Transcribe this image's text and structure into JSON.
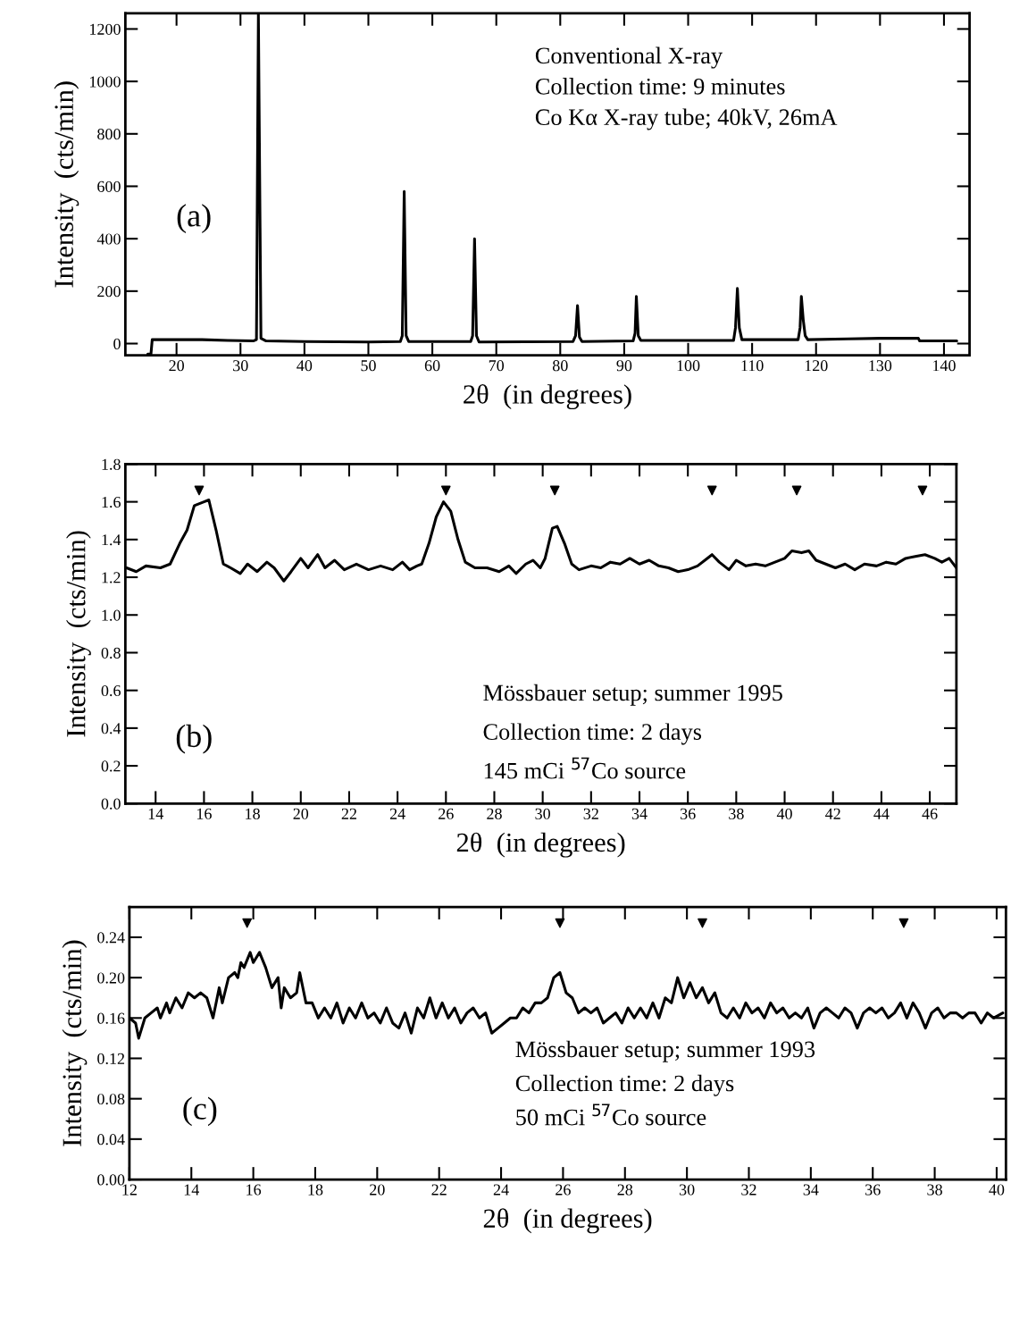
{
  "chart_data": [
    {
      "type": "line",
      "xlabel": "2θ  (in degrees)",
      "ylabel": "Intensity  (cts/min)",
      "xlim": [
        12,
        144
      ],
      "ylim": [
        -45,
        1260
      ],
      "xticks": [
        20,
        30,
        40,
        50,
        60,
        70,
        80,
        90,
        100,
        110,
        120,
        130,
        140
      ],
      "yticks": [
        0,
        200,
        400,
        600,
        800,
        1000,
        1200
      ],
      "grid": false,
      "legend": false,
      "annotations": [
        "(a)",
        "Conventional X-ray",
        "Collection time: 9 minutes",
        "Co Kα X-ray tube; 40kV, 26mA"
      ],
      "series": [
        {
          "color": "#000000",
          "line_style": "solid",
          "x": [
            15.5,
            16.0,
            16.2,
            18,
            24,
            28,
            32,
            32.5,
            32.8,
            33.2,
            34,
            40,
            50,
            55,
            55.3,
            55.6,
            55.9,
            56.3,
            66,
            66.3,
            66.6,
            66.9,
            67.3,
            82,
            82.4,
            82.7,
            83.0,
            83.4,
            91.4,
            91.7,
            91.9,
            92.2,
            92.6,
            107.1,
            107.4,
            107.7,
            108.0,
            108.4,
            117.2,
            117.5,
            117.7,
            118.0,
            118.3,
            118.7,
            125,
            130,
            136,
            136.2,
            142
          ],
          "values": [
            -40,
            -40,
            15,
            15,
            15,
            12,
            10,
            15,
            1260,
            20,
            10,
            8,
            6,
            8,
            30,
            580,
            30,
            8,
            8,
            30,
            400,
            30,
            6,
            8,
            30,
            145,
            25,
            8,
            10,
            40,
            180,
            30,
            12,
            12,
            60,
            210,
            60,
            15,
            15,
            60,
            180,
            90,
            30,
            15,
            18,
            20,
            20,
            10,
            10
          ]
        }
      ]
    },
    {
      "type": "line",
      "xlabel": "2θ  (in degrees)",
      "ylabel": "Intensity  (cts/min)",
      "xlim": [
        12.75,
        47.1
      ],
      "ylim": [
        0,
        1.8
      ],
      "xticks": [
        14,
        16,
        18,
        20,
        22,
        24,
        26,
        28,
        30,
        32,
        34,
        36,
        38,
        40,
        42,
        44,
        46
      ],
      "yticks": [
        {
          "value": 0,
          "label": "0.0"
        },
        0.2,
        0.4,
        0.6,
        0.8,
        {
          "value": 1,
          "label": "1.0"
        },
        1.2,
        1.4,
        1.6,
        1.8
      ],
      "grid": false,
      "legend": false,
      "annotations": [
        "(b)",
        "Mössbauer setup; summer 1995",
        "Collection time: 2 days",
        "145 mCi $^{57}$Co source"
      ],
      "series": [
        {
          "color": "#000000",
          "line_style": "solid",
          "x": [
            12.8,
            13.2,
            13.6,
            14.2,
            14.6,
            15.0,
            15.3,
            15.6,
            16.0,
            16.2,
            16.5,
            16.8,
            17.1,
            17.5,
            17.8,
            18.2,
            18.6,
            18.9,
            19.3,
            19.6,
            20.0,
            20.3,
            20.7,
            21.0,
            21.4,
            21.8,
            22.3,
            22.8,
            23.3,
            23.8,
            24.2,
            24.5,
            24.8,
            25.0,
            25.3,
            25.6,
            25.9,
            26.2,
            26.5,
            26.8,
            27.2,
            27.7,
            28.2,
            28.6,
            28.9,
            29.3,
            29.6,
            29.9,
            30.1,
            30.4,
            30.6,
            30.9,
            31.2,
            31.5,
            32.0,
            32.4,
            32.8,
            33.2,
            33.6,
            34.0,
            34.4,
            34.8,
            35.2,
            35.6,
            36.0,
            36.4,
            36.8,
            37.0,
            37.3,
            37.7,
            38.0,
            38.4,
            38.8,
            39.2,
            39.6,
            40.0,
            40.3,
            40.7,
            41.0,
            41.3,
            41.7,
            42.1,
            42.5,
            42.9,
            43.3,
            43.8,
            44.2,
            44.6,
            45.0,
            45.4,
            45.8,
            46.2,
            46.5,
            46.8,
            47.1
          ],
          "values": [
            1.25,
            1.23,
            1.26,
            1.25,
            1.27,
            1.38,
            1.45,
            1.58,
            1.6,
            1.61,
            1.45,
            1.27,
            1.25,
            1.22,
            1.27,
            1.23,
            1.28,
            1.25,
            1.18,
            1.23,
            1.3,
            1.25,
            1.32,
            1.25,
            1.29,
            1.24,
            1.27,
            1.24,
            1.26,
            1.24,
            1.28,
            1.24,
            1.26,
            1.27,
            1.38,
            1.52,
            1.6,
            1.55,
            1.4,
            1.28,
            1.25,
            1.25,
            1.23,
            1.26,
            1.22,
            1.27,
            1.29,
            1.25,
            1.3,
            1.46,
            1.47,
            1.38,
            1.27,
            1.24,
            1.26,
            1.25,
            1.28,
            1.27,
            1.3,
            1.27,
            1.29,
            1.26,
            1.25,
            1.23,
            1.24,
            1.26,
            1.3,
            1.32,
            1.28,
            1.24,
            1.29,
            1.26,
            1.27,
            1.26,
            1.28,
            1.3,
            1.34,
            1.33,
            1.34,
            1.29,
            1.27,
            1.25,
            1.27,
            1.24,
            1.27,
            1.26,
            1.28,
            1.27,
            1.3,
            1.31,
            1.32,
            1.3,
            1.28,
            1.3,
            1.25
          ]
        },
        {
          "type": "scatter",
          "color": "#000000",
          "marker": "triangle",
          "x": [
            15.8,
            26.0,
            30.5,
            37.0,
            40.5,
            45.7
          ],
          "values": [
            1.66,
            1.66,
            1.66,
            1.66,
            1.66,
            1.66
          ]
        }
      ]
    },
    {
      "type": "line",
      "xlabel": "2θ  (in degrees)",
      "ylabel": "Intensity  (cts/min)",
      "xlim": [
        12,
        40.3
      ],
      "ylim": [
        0,
        0.27
      ],
      "xticks": [
        12,
        14,
        16,
        18,
        20,
        22,
        24,
        26,
        28,
        30,
        32,
        34,
        36,
        38,
        40
      ],
      "yticks": [
        {
          "value": 0,
          "label": "0.00"
        },
        0.04,
        0.08,
        0.12,
        0.16,
        {
          "value": 0.2,
          "label": "0.20"
        },
        0.24
      ],
      "grid": false,
      "legend": false,
      "annotations": [
        "(c)",
        "Mössbauer setup; summer 1993",
        "Collection time: 2 days",
        "50 mCi $^{57}$Co source"
      ],
      "series": [
        {
          "color": "#000000",
          "line_style": "solid",
          "x": [
            12.0,
            12.2,
            12.3,
            12.5,
            12.7,
            12.9,
            13.0,
            13.2,
            13.3,
            13.5,
            13.7,
            13.9,
            14.1,
            14.3,
            14.5,
            14.7,
            14.9,
            15.0,
            15.2,
            15.4,
            15.5,
            15.6,
            15.7,
            15.9,
            16.0,
            16.2,
            16.4,
            16.6,
            16.8,
            16.9,
            17.0,
            17.2,
            17.4,
            17.5,
            17.7,
            17.9,
            18.1,
            18.3,
            18.5,
            18.7,
            18.9,
            19.1,
            19.3,
            19.5,
            19.7,
            19.9,
            20.1,
            20.3,
            20.5,
            20.7,
            20.9,
            21.1,
            21.3,
            21.5,
            21.7,
            21.9,
            22.1,
            22.3,
            22.5,
            22.7,
            22.9,
            23.1,
            23.3,
            23.5,
            23.7,
            23.9,
            24.1,
            24.3,
            24.5,
            24.7,
            24.9,
            25.1,
            25.3,
            25.5,
            25.7,
            25.9,
            26.1,
            26.3,
            26.5,
            26.7,
            26.9,
            27.1,
            27.3,
            27.5,
            27.7,
            27.9,
            28.1,
            28.3,
            28.5,
            28.7,
            28.9,
            29.1,
            29.3,
            29.5,
            29.7,
            29.9,
            30.1,
            30.3,
            30.5,
            30.7,
            30.9,
            31.1,
            31.3,
            31.5,
            31.7,
            31.9,
            32.1,
            32.3,
            32.5,
            32.7,
            32.9,
            33.1,
            33.3,
            33.5,
            33.7,
            33.9,
            34.1,
            34.3,
            34.5,
            34.7,
            34.9,
            35.1,
            35.3,
            35.5,
            35.7,
            35.9,
            36.1,
            36.3,
            36.5,
            36.7,
            36.9,
            37.1,
            37.3,
            37.5,
            37.7,
            37.9,
            38.1,
            38.3,
            38.5,
            38.7,
            38.9,
            39.1,
            39.3,
            39.5,
            39.7,
            39.9,
            40.2
          ],
          "values": [
            0.16,
            0.155,
            0.14,
            0.16,
            0.165,
            0.17,
            0.16,
            0.175,
            0.165,
            0.18,
            0.17,
            0.185,
            0.18,
            0.185,
            0.18,
            0.16,
            0.19,
            0.175,
            0.2,
            0.205,
            0.2,
            0.215,
            0.21,
            0.225,
            0.215,
            0.225,
            0.21,
            0.19,
            0.2,
            0.17,
            0.19,
            0.18,
            0.185,
            0.205,
            0.175,
            0.175,
            0.16,
            0.17,
            0.16,
            0.175,
            0.155,
            0.17,
            0.16,
            0.175,
            0.16,
            0.165,
            0.155,
            0.17,
            0.155,
            0.15,
            0.165,
            0.145,
            0.17,
            0.16,
            0.18,
            0.16,
            0.175,
            0.16,
            0.17,
            0.155,
            0.165,
            0.17,
            0.16,
            0.165,
            0.145,
            0.15,
            0.155,
            0.16,
            0.16,
            0.17,
            0.165,
            0.175,
            0.175,
            0.18,
            0.2,
            0.205,
            0.185,
            0.18,
            0.165,
            0.17,
            0.165,
            0.17,
            0.155,
            0.16,
            0.165,
            0.155,
            0.17,
            0.16,
            0.17,
            0.16,
            0.175,
            0.16,
            0.18,
            0.175,
            0.2,
            0.18,
            0.195,
            0.18,
            0.19,
            0.175,
            0.185,
            0.165,
            0.16,
            0.17,
            0.16,
            0.175,
            0.165,
            0.17,
            0.16,
            0.175,
            0.165,
            0.17,
            0.16,
            0.165,
            0.16,
            0.17,
            0.15,
            0.165,
            0.17,
            0.165,
            0.16,
            0.17,
            0.165,
            0.15,
            0.165,
            0.17,
            0.165,
            0.17,
            0.16,
            0.165,
            0.175,
            0.16,
            0.175,
            0.165,
            0.15,
            0.165,
            0.17,
            0.16,
            0.165,
            0.165,
            0.16,
            0.165,
            0.165,
            0.155,
            0.165,
            0.16,
            0.165
          ]
        },
        {
          "type": "scatter",
          "color": "#000000",
          "marker": "triangle",
          "x": [
            15.8,
            25.9,
            30.5,
            37.0
          ],
          "values": [
            0.254,
            0.254,
            0.254,
            0.254
          ]
        }
      ]
    }
  ]
}
